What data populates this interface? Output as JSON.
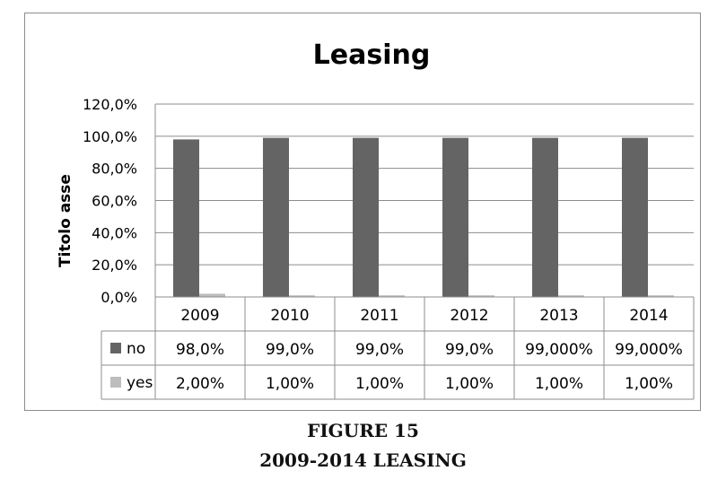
{
  "caption": {
    "figure_number": "FIGURE 15",
    "figure_title": "2009-2014 LEASING"
  },
  "chart_data": {
    "type": "bar",
    "title": "Leasing",
    "xlabel": "",
    "ylabel": "Titolo asse",
    "ylim": [
      0,
      120
    ],
    "yticks": [
      "0,0%",
      "20,0%",
      "40,0%",
      "60,0%",
      "80,0%",
      "100,0%",
      "120,0%"
    ],
    "grid": true,
    "legend": "data-table",
    "categories": [
      "2009",
      "2010",
      "2011",
      "2012",
      "2013",
      "2014"
    ],
    "series": [
      {
        "name": "no",
        "color": "#646464",
        "values": [
          98.0,
          99.0,
          99.0,
          99.0,
          99.0,
          99.0
        ],
        "labels": [
          "98,0%",
          "99,0%",
          "99,0%",
          "99,0%",
          "99,000%",
          "99,000%"
        ]
      },
      {
        "name": "yes",
        "color": "#bdbdbd",
        "values": [
          2.0,
          1.0,
          1.0,
          1.0,
          1.0,
          1.0
        ],
        "labels": [
          "2,00%",
          "1,00%",
          "1,00%",
          "1,00%",
          "1,00%",
          "1,00%"
        ]
      }
    ]
  }
}
